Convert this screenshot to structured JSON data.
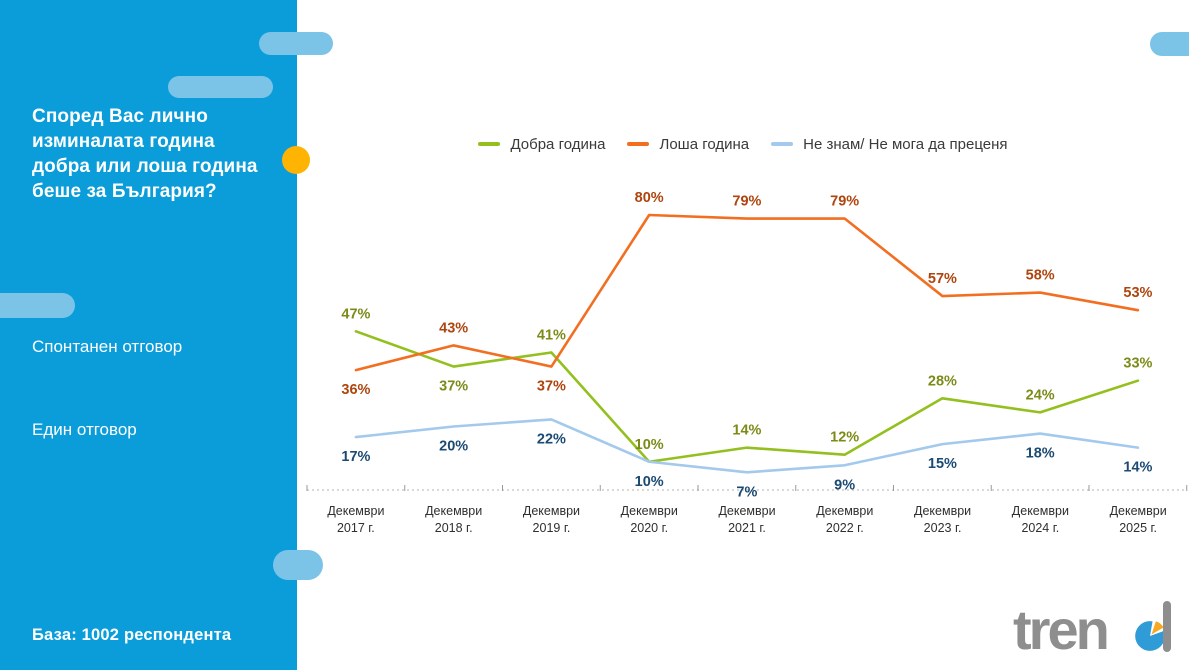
{
  "sidebar": {
    "question": "Според Вас лично\nизминалата година\nдобра или лоша година\nбеше за България?",
    "note_spontaneous": "Спонтанен отговор",
    "note_single": "Един отговор",
    "base_label": "База:  1002 респондента"
  },
  "logo": {
    "text": "tren"
  },
  "theme": {
    "sidebar_bg": "#0A9DDA",
    "decor_pill": "#7CC3E8",
    "accent_dot": "#FFB302",
    "logo_gray": "#8E8E8E",
    "axis_line": "#b3b3b3",
    "tick": "#9a9a9a"
  },
  "chart_data": {
    "type": "line",
    "title": "",
    "categories": [
      "Декември\n2017 г.",
      "Декември\n2018 г.",
      "Декември\n2019 г.",
      "Декември\n2020 г.",
      "Декември\n2021 г.",
      "Декември\n2022 г.",
      "Декември\n2023 г.",
      "Декември\n2024 г.",
      "Декември\n2025 г."
    ],
    "series": [
      {
        "name": "Добра година",
        "color": "#93C01E",
        "label_color": "#7C8A17",
        "values": [
          47,
          37,
          41,
          10,
          14,
          12,
          28,
          24,
          33
        ],
        "label_side": [
          "above",
          "below",
          "above",
          "above",
          "above",
          "above",
          "above",
          "above",
          "above"
        ]
      },
      {
        "name": "Лоша година",
        "color": "#F26F21",
        "label_color": "#AE450E",
        "values": [
          36,
          43,
          37,
          80,
          79,
          79,
          57,
          58,
          53
        ],
        "label_side": [
          "below",
          "above",
          "below",
          "above",
          "above",
          "above",
          "above",
          "above",
          "above"
        ]
      },
      {
        "name": "Не знам/ Не мога да преценя",
        "color": "#A3C9EC",
        "label_color": "#1B4A73",
        "values": [
          17,
          20,
          22,
          10,
          7,
          9,
          15,
          18,
          14
        ],
        "label_side": [
          "below",
          "below",
          "below",
          "below",
          "below",
          "below",
          "below",
          "below",
          "below"
        ]
      }
    ],
    "ylim": [
      0,
      100
    ],
    "value_suffix": "%",
    "legend_position": "top",
    "grid": false
  }
}
